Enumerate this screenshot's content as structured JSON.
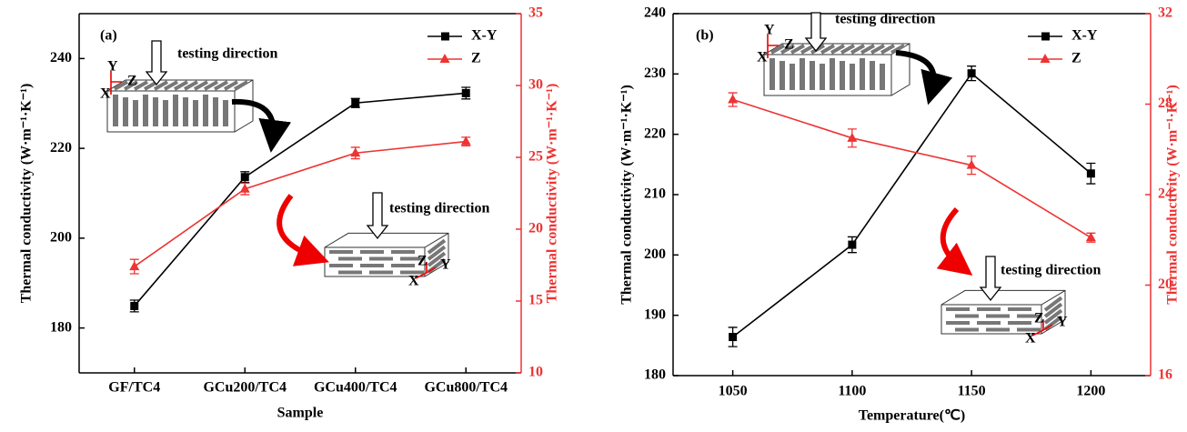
{
  "chart_data": [
    {
      "type": "line",
      "panel_label": "(a)",
      "x_label": "Sample",
      "y_label": "Thermal conductivity (W·m⁻¹·K⁻¹)",
      "y2_label": "Thermal conductivity (W·m⁻¹·K⁻¹)",
      "categories": [
        "GF/TC4",
        "GCu200/TC4",
        "GCu400/TC4",
        "GCu800/TC4"
      ],
      "ylim": [
        170,
        250
      ],
      "yticks": [
        180,
        200,
        220,
        240
      ],
      "y2lim": [
        10,
        35
      ],
      "y2ticks": [
        10,
        15,
        20,
        25,
        30,
        35
      ],
      "legend": "upper right",
      "series": [
        {
          "name": "X-Y",
          "color": "#000000",
          "marker": "square",
          "values": [
            184.9,
            213.6,
            230.1,
            232.3
          ],
          "errors": [
            1.3,
            1.2,
            1.0,
            1.3
          ]
        },
        {
          "name": "Z",
          "color": "#ee3333",
          "marker": "triangle",
          "axis": "y2",
          "values": [
            17.4,
            22.8,
            25.3,
            26.1
          ],
          "errors": [
            0.5,
            0.4,
            0.4,
            0.3
          ]
        }
      ],
      "annotations": [
        "testing direction",
        "testing direction"
      ],
      "axis_letters": [
        "X",
        "Y",
        "Z"
      ]
    },
    {
      "type": "line",
      "panel_label": "(b)",
      "x_label": "Temperature(℃)",
      "y_label": "Thermal conductivity (W·m⁻¹·K⁻¹)",
      "y2_label": "Thermal conductivity (W·m⁻¹·K⁻¹)",
      "x": [
        1050,
        1100,
        1150,
        1200
      ],
      "xlim": [
        1025,
        1225
      ],
      "xticks": [
        1050,
        1100,
        1150,
        1200
      ],
      "ylim": [
        180,
        240
      ],
      "yticks": [
        180,
        190,
        200,
        210,
        220,
        230,
        240
      ],
      "y2lim": [
        16,
        32
      ],
      "y2ticks": [
        16,
        20,
        24,
        28,
        32
      ],
      "legend": "upper right",
      "series": [
        {
          "name": "X-Y",
          "color": "#000000",
          "marker": "square",
          "values": [
            186.4,
            201.7,
            230.1,
            213.5
          ],
          "errors": [
            1.6,
            1.3,
            1.2,
            1.7
          ]
        },
        {
          "name": "Z",
          "color": "#ee3333",
          "marker": "triangle",
          "axis": "y2",
          "values": [
            28.2,
            26.5,
            25.3,
            22.1
          ],
          "errors": [
            0.3,
            0.4,
            0.4,
            0.2
          ]
        }
      ],
      "annotations": [
        "testing direction",
        "testing direction"
      ],
      "axis_letters": [
        "X",
        "Y",
        "Z"
      ]
    }
  ]
}
